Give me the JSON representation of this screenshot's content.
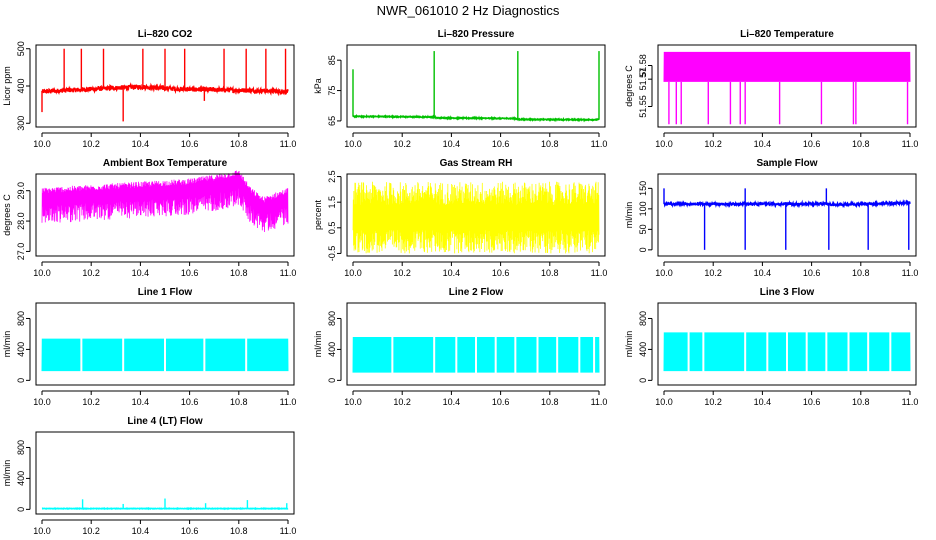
{
  "figure": {
    "title": "NWR_061010  2 Hz Diagnostics"
  },
  "chart_data": [
    {
      "id": "co2",
      "type": "line",
      "title": "Li–820 CO2",
      "ylabel": "Licor ppm",
      "color": "#ff0000",
      "xlim": [
        10.0,
        11.0
      ],
      "ylim": [
        290,
        510
      ],
      "xticks": [
        10.0,
        10.2,
        10.4,
        10.6,
        10.8,
        11.0
      ],
      "xtick_labels": [
        "10.0",
        "10.2",
        "10.4",
        "10.6",
        "10.8",
        "11.0"
      ],
      "yticks": [
        300,
        400,
        500
      ],
      "ytick_labels": [
        "300",
        "400",
        "500"
      ],
      "series": [
        {
          "baseline": [
            [
              10.0,
              385
            ],
            [
              10.15,
              390
            ],
            [
              10.3,
              395
            ],
            [
              10.4,
              398
            ],
            [
              10.55,
              392
            ],
            [
              10.7,
              390
            ],
            [
              10.85,
              388
            ],
            [
              11.0,
              385
            ]
          ],
          "noise": 6,
          "spikes": [
            [
              10.0,
              330
            ],
            [
              10.09,
              500
            ],
            [
              10.16,
              500
            ],
            [
              10.25,
              500
            ],
            [
              10.33,
              305
            ],
            [
              10.41,
              500
            ],
            [
              10.5,
              500
            ],
            [
              10.58,
              500
            ],
            [
              10.66,
              360
            ],
            [
              10.74,
              500
            ],
            [
              10.83,
              500
            ],
            [
              10.91,
              500
            ],
            [
              10.99,
              500
            ]
          ]
        }
      ]
    },
    {
      "id": "pressure",
      "type": "line",
      "title": "Li–820 Pressure",
      "ylabel": "kPa",
      "color": "#00c000",
      "xlim": [
        10.0,
        11.0
      ],
      "ylim": [
        63,
        90
      ],
      "xticks": [
        10.0,
        10.2,
        10.4,
        10.6,
        10.8,
        11.0
      ],
      "xtick_labels": [
        "10.0",
        "10.2",
        "10.4",
        "10.6",
        "10.8",
        "11.0"
      ],
      "yticks": [
        65,
        75,
        85
      ],
      "ytick_labels": [
        "65",
        "75",
        "85"
      ],
      "series": [
        {
          "baseline": [
            [
              10.0,
              66.5
            ],
            [
              10.33,
              66.3
            ],
            [
              10.34,
              66.0
            ],
            [
              10.66,
              65.8
            ],
            [
              10.67,
              65.5
            ],
            [
              11.0,
              65.4
            ]
          ],
          "noise": 0.15,
          "spikes": [
            [
              10.0,
              82
            ],
            [
              10.33,
              88
            ],
            [
              10.67,
              88
            ],
            [
              11.0,
              88
            ]
          ]
        }
      ]
    },
    {
      "id": "li820temp",
      "type": "line",
      "title": "Li–820 Temperature",
      "ylabel": "degrees C",
      "color": "#ff00ff",
      "xlim": [
        10.0,
        11.0
      ],
      "ylim": [
        51.535,
        51.595
      ],
      "xticks": [
        10.0,
        10.2,
        10.4,
        10.6,
        10.8,
        11.0
      ],
      "xtick_labels": [
        "10.0",
        "10.2",
        "10.4",
        "10.6",
        "10.8",
        "11.0"
      ],
      "yticks": [
        51.55,
        51.57,
        51.58
      ],
      "ytick_labels": [
        "51.55",
        "51.57",
        "51.58"
      ],
      "series": [
        {
          "levels": [
            51.568,
            51.59
          ],
          "dips_to": 51.537,
          "dips": [
            10.02,
            10.05,
            10.07,
            10.18,
            10.27,
            10.31,
            10.33,
            10.47,
            10.64,
            10.77,
            10.78,
            10.99
          ]
        }
      ]
    },
    {
      "id": "ambient",
      "type": "line",
      "title": "Ambient Box Temperature",
      "ylabel": "degrees C",
      "color": "#ff00ff",
      "xlim": [
        10.0,
        11.0
      ],
      "ylim": [
        26.85,
        29.55
      ],
      "xticks": [
        10.0,
        10.2,
        10.4,
        10.6,
        10.8,
        11.0
      ],
      "xtick_labels": [
        "10.0",
        "10.2",
        "10.4",
        "10.6",
        "10.8",
        "11.0"
      ],
      "yticks": [
        27.0,
        28.0,
        29.0
      ],
      "ytick_labels": [
        "27.0",
        "28.0",
        "29.0"
      ],
      "series": [
        {
          "baseline": [
            [
              10.0,
              28.8
            ],
            [
              10.2,
              28.9
            ],
            [
              10.4,
              29.0
            ],
            [
              10.6,
              29.1
            ],
            [
              10.75,
              29.3
            ],
            [
              10.8,
              29.4
            ],
            [
              10.85,
              28.8
            ],
            [
              10.9,
              28.5
            ],
            [
              11.0,
              28.8
            ]
          ],
          "band": [
            0.3,
            0.9
          ]
        }
      ]
    },
    {
      "id": "rh",
      "type": "line",
      "title": "Gas Stream RH",
      "ylabel": "percent",
      "color": "#ffff00",
      "xlim": [
        10.0,
        11.0
      ],
      "ylim": [
        -0.6,
        2.6
      ],
      "xticks": [
        10.0,
        10.2,
        10.4,
        10.6,
        10.8,
        11.0
      ],
      "xtick_labels": [
        "10.0",
        "10.2",
        "10.4",
        "10.6",
        "10.8",
        "11.0"
      ],
      "yticks": [
        -0.5,
        0.5,
        1.5,
        2.5
      ],
      "ytick_labels": [
        "-0.5",
        "0.5",
        "1.5",
        "2.5"
      ],
      "series": [
        {
          "baseline": [
            [
              10.0,
              0.9
            ],
            [
              11.0,
              0.9
            ]
          ],
          "band": [
            1.4,
            1.4
          ]
        }
      ]
    },
    {
      "id": "sampleflow",
      "type": "line",
      "title": "Sample Flow",
      "ylabel": "ml/min",
      "color": "#0000ff",
      "xlim": [
        10.0,
        11.0
      ],
      "ylim": [
        -15,
        185
      ],
      "xticks": [
        10.0,
        10.2,
        10.4,
        10.6,
        10.8,
        11.0
      ],
      "xtick_labels": [
        "10.0",
        "10.2",
        "10.4",
        "10.6",
        "10.8",
        "11.0"
      ],
      "yticks": [
        0,
        50,
        100,
        150
      ],
      "ytick_labels": [
        "0",
        "50",
        "100",
        "150"
      ],
      "series": [
        {
          "baseline": [
            [
              10.0,
              112
            ],
            [
              10.67,
              112
            ],
            [
              10.68,
              110
            ],
            [
              11.0,
              115
            ]
          ],
          "noise": 3,
          "spikes": [
            [
              10.0,
              150
            ],
            [
              10.165,
              0
            ],
            [
              10.33,
              0
            ],
            [
              10.33,
              150
            ],
            [
              10.495,
              0
            ],
            [
              10.66,
              150
            ],
            [
              10.67,
              0
            ],
            [
              10.83,
              0
            ],
            [
              10.995,
              0
            ]
          ]
        }
      ]
    },
    {
      "id": "line1",
      "type": "line",
      "title": "Line 1 Flow",
      "ylabel": "ml/min",
      "color": "#00ffff",
      "xlim": [
        10.0,
        11.0
      ],
      "ylim": [
        -60,
        1000
      ],
      "xticks": [
        10.0,
        10.2,
        10.4,
        10.6,
        10.8,
        11.0
      ],
      "xtick_labels": [
        "10.0",
        "10.2",
        "10.4",
        "10.6",
        "10.8",
        "11.0"
      ],
      "yticks": [
        0,
        400,
        800
      ],
      "ytick_labels": [
        "0",
        "400",
        "800"
      ],
      "series": [
        {
          "band_low": 120,
          "band_high": 540,
          "gaps": [
            10.16,
            10.33,
            10.5,
            10.66,
            10.83
          ]
        }
      ]
    },
    {
      "id": "line2",
      "type": "line",
      "title": "Line 2 Flow",
      "ylabel": "ml/min",
      "color": "#00ffff",
      "xlim": [
        10.0,
        11.0
      ],
      "ylim": [
        -60,
        1000
      ],
      "xticks": [
        10.0,
        10.2,
        10.4,
        10.6,
        10.8,
        11.0
      ],
      "xtick_labels": [
        "10.0",
        "10.2",
        "10.4",
        "10.6",
        "10.8",
        "11.0"
      ],
      "yticks": [
        0,
        400,
        800
      ],
      "ytick_labels": [
        "0",
        "400",
        "800"
      ],
      "series": [
        {
          "band_low": 100,
          "band_high": 560,
          "gaps": [
            10.16,
            10.33,
            10.42,
            10.5,
            10.58,
            10.66,
            10.75,
            10.83,
            10.92,
            10.98
          ]
        }
      ]
    },
    {
      "id": "line3",
      "type": "line",
      "title": "Line 3 Flow",
      "ylabel": "ml/min",
      "color": "#00ffff",
      "xlim": [
        10.0,
        11.0
      ],
      "ylim": [
        -60,
        1000
      ],
      "xticks": [
        10.0,
        10.2,
        10.4,
        10.6,
        10.8,
        11.0
      ],
      "xtick_labels": [
        "10.0",
        "10.2",
        "10.4",
        "10.6",
        "10.8",
        "11.0"
      ],
      "yticks": [
        0,
        400,
        800
      ],
      "ytick_labels": [
        "0",
        "400",
        "800"
      ],
      "series": [
        {
          "band_low": 120,
          "band_high": 620,
          "gaps": [
            10.1,
            10.16,
            10.33,
            10.42,
            10.5,
            10.58,
            10.66,
            10.75,
            10.83,
            10.92
          ]
        }
      ]
    },
    {
      "id": "line4",
      "type": "line",
      "title": "Line 4 (LT) Flow",
      "ylabel": "ml/min",
      "color": "#00ffff",
      "xlim": [
        10.0,
        11.0
      ],
      "ylim": [
        -60,
        1000
      ],
      "xticks": [
        10.0,
        10.2,
        10.4,
        10.6,
        10.8,
        11.0
      ],
      "xtick_labels": [
        "10.0",
        "10.2",
        "10.4",
        "10.6",
        "10.8",
        "11.0"
      ],
      "yticks": [
        0,
        400,
        800
      ],
      "ytick_labels": [
        "0",
        "400",
        "800"
      ],
      "series": [
        {
          "baseline": [
            [
              10.0,
              10
            ],
            [
              11.0,
              10
            ]
          ],
          "noise": 3,
          "spikes": [
            [
              10.165,
              130
            ],
            [
              10.33,
              70
            ],
            [
              10.5,
              140
            ],
            [
              10.665,
              80
            ],
            [
              10.835,
              120
            ],
            [
              10.995,
              80
            ]
          ]
        }
      ]
    }
  ]
}
